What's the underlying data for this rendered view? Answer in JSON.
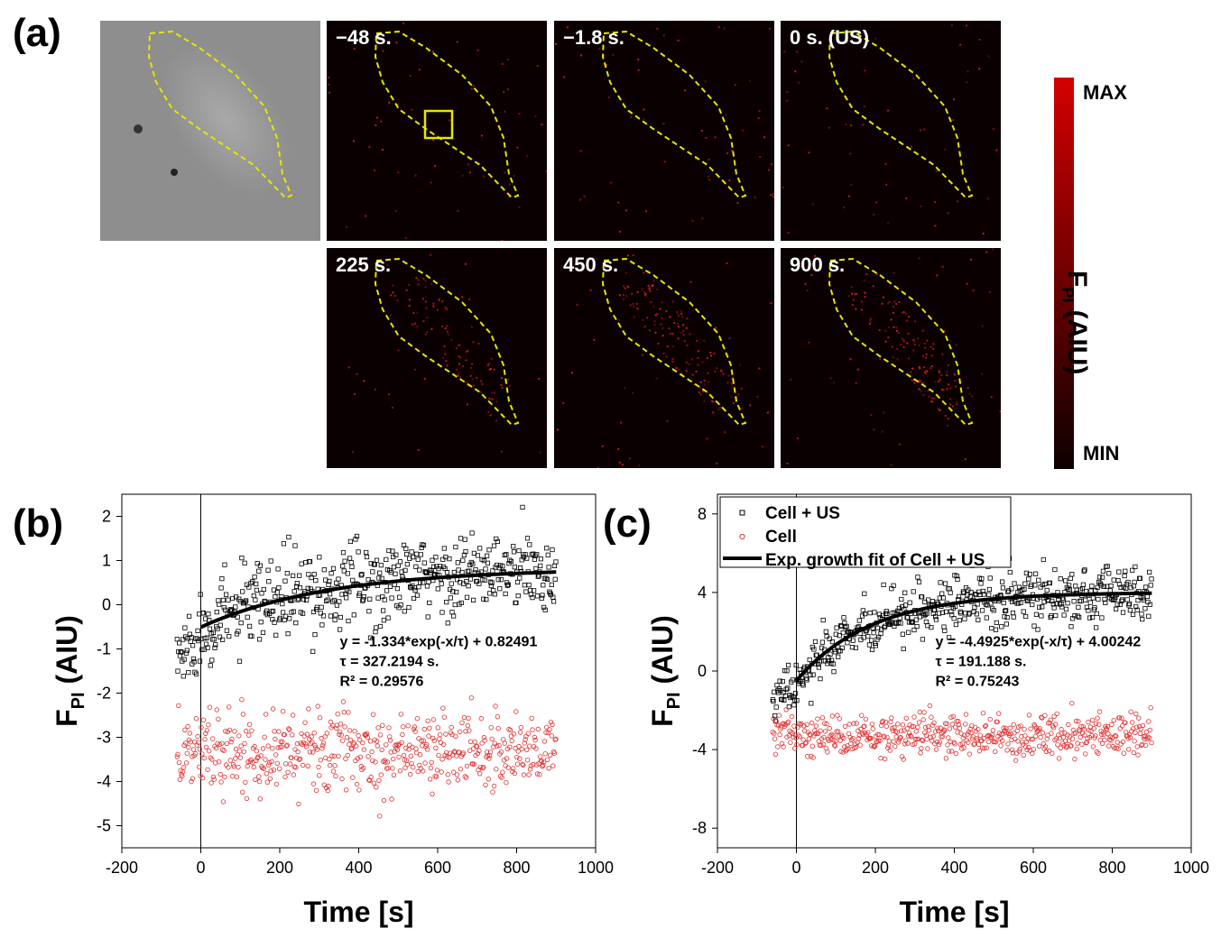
{
  "panels": {
    "a": "(a)",
    "b": "(b)",
    "c": "(c)"
  },
  "images": {
    "frames": [
      "−48 s.",
      "−1.8 s.",
      "0 s. (US)",
      "225 s.",
      "450 s.",
      "900 s."
    ]
  },
  "colorbar": {
    "max_label": "MAX",
    "min_label": "MIN",
    "title_main": "F",
    "title_sub": "PI",
    "title_unit": " (AIU)",
    "colors": {
      "top": "#d40000",
      "bottom": "#0d0000"
    }
  },
  "colors": {
    "cell_us": "#000000",
    "cell": "#e03030",
    "outline": "#e6e600",
    "fit": "#000000"
  },
  "chart_data": [
    {
      "type": "scatter",
      "panel": "(b)",
      "xlabel": "Time [s]",
      "ylabel_main": "F",
      "ylabel_sub": "PI",
      "ylabel_unit": " (AIU)",
      "xlim": [
        -200,
        1000
      ],
      "ylim": [
        -5.5,
        2.5
      ],
      "xticks": [
        -200,
        0,
        200,
        400,
        600,
        800,
        1000
      ],
      "yticks": [
        2,
        1,
        0,
        -1,
        -2,
        -3,
        -4,
        -5
      ],
      "vline_x": 0,
      "series": [
        {
          "kind": "cell_us",
          "t_range": [
            -60,
            900
          ],
          "model": {
            "A": -1.334,
            "tau": 327.2194,
            "y0": 0.82491
          },
          "noise": 0.45,
          "pre_mean": -1.2
        },
        {
          "kind": "cell",
          "t_range": [
            -60,
            900
          ],
          "mean": -3.3,
          "noise": 0.45
        }
      ],
      "fit": {
        "A": -1.334,
        "tau": 327.2194,
        "y0": 0.82491,
        "x_range": [
          0,
          900
        ]
      },
      "annotation": [
        "y = -1.334*exp(-x/τ) + 0.82491",
        "τ = 327.2194 s.",
        "R² = 0.29576"
      ]
    },
    {
      "type": "scatter",
      "panel": "(c)",
      "xlabel": "Time [s]",
      "ylabel_main": "F",
      "ylabel_sub": "PI",
      "ylabel_unit": " (AIU)",
      "xlim": [
        -200,
        1000
      ],
      "ylim": [
        -9,
        9
      ],
      "xticks": [
        -200,
        0,
        200,
        400,
        600,
        800,
        1000
      ],
      "yticks": [
        8,
        4,
        0,
        -4,
        -8
      ],
      "vline_x": 0,
      "series": [
        {
          "name": "Cell + US",
          "kind": "cell_us",
          "t_range": [
            -60,
            900
          ],
          "model": {
            "A": -4.4925,
            "tau": 191.188,
            "y0": 4.00242
          },
          "noise": 0.7,
          "pre_mean": -1.3
        },
        {
          "name": "Cell",
          "kind": "cell",
          "t_range": [
            -60,
            900
          ],
          "mean": -3.3,
          "noise": 0.55
        }
      ],
      "fit": {
        "A": -4.4925,
        "tau": 191.188,
        "y0": 4.00242,
        "x_range": [
          0,
          900
        ]
      },
      "legend": [
        "Cell + US",
        "Cell",
        "Exp. growth fit of Cell + US"
      ],
      "annotation": [
        "y = -4.4925*exp(-x/τ) + 4.00242",
        "τ = 191.188 s.",
        "R² = 0.75243"
      ]
    }
  ]
}
